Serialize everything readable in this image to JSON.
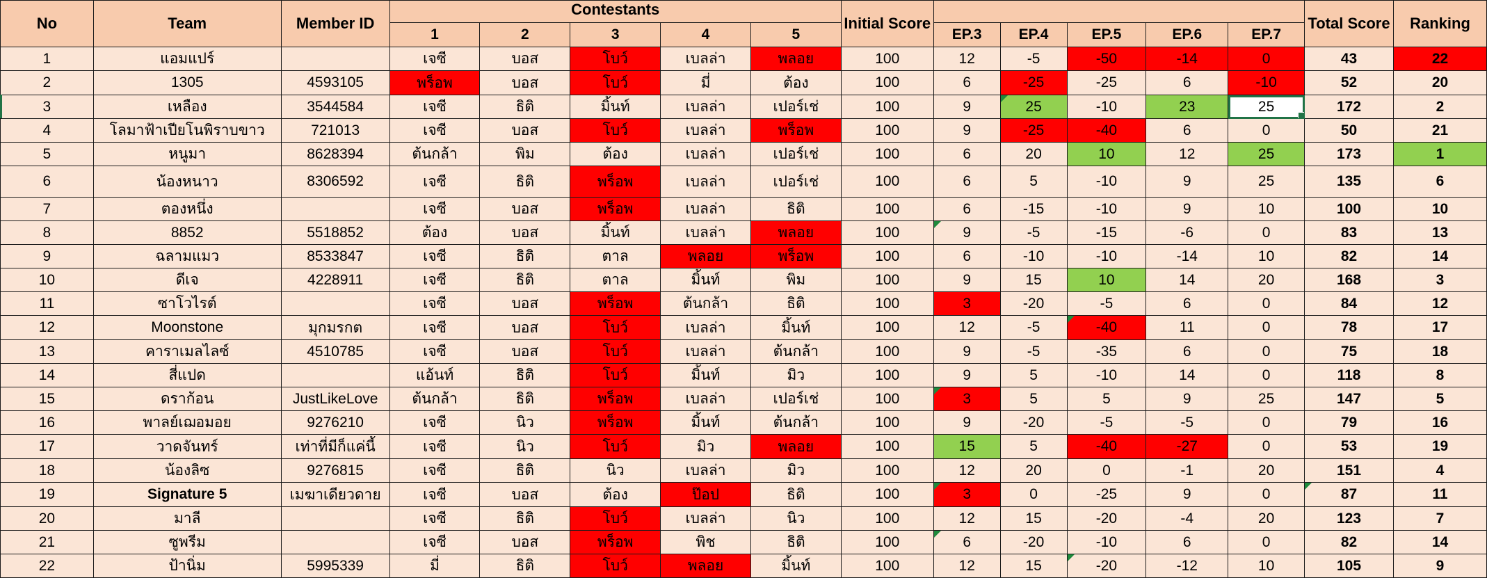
{
  "headers": {
    "no": "No",
    "team": "Team",
    "member_id": "Member ID",
    "contestants": "Contestants",
    "contestant_cols": [
      "1",
      "2",
      "3",
      "4",
      "5"
    ],
    "initial_score": "Initial Score",
    "episodes": [
      "EP.3",
      "EP.4",
      "EP.5",
      "EP.6",
      "EP.7"
    ],
    "total_score": "Total Score",
    "ranking": "Ranking"
  },
  "colors": {
    "header_fill": "#f8cbad",
    "row_fill": "#fbe5d6",
    "highlight_red": "#ff0000",
    "highlight_green": "#92d050",
    "selection_border": "#217346"
  },
  "selected_cell": "EP.7 row 3",
  "rows": [
    {
      "no": "1",
      "team": "แอมแปร์",
      "member_id": "",
      "contestants": [
        "เจซี",
        "บอส",
        "โบว์",
        "เบลล่า",
        "พลอย"
      ],
      "initial": "100",
      "eps": [
        "12",
        "-5",
        "-50",
        "-14",
        "0"
      ],
      "total": "43",
      "rank": "22"
    },
    {
      "no": "2",
      "team": "1305",
      "member_id": "4593105",
      "contestants": [
        "พร็อพ",
        "บอส",
        "โบว์",
        "มี่",
        "ต้อง"
      ],
      "initial": "100",
      "eps": [
        "6",
        "-25",
        "-25",
        "6",
        "-10"
      ],
      "total": "52",
      "rank": "20"
    },
    {
      "no": "3",
      "team": "เหลือง",
      "member_id": "3544584",
      "contestants": [
        "เจซี",
        "ธิติ",
        "มิ้นท์",
        "เบลล่า",
        "เปอร์เช่"
      ],
      "initial": "100",
      "eps": [
        "9",
        "25",
        "-10",
        "23",
        "25"
      ],
      "total": "172",
      "rank": "2"
    },
    {
      "no": "4",
      "team": "โลมาฟ้าเปียโนพิราบขาว",
      "member_id": "721013",
      "contestants": [
        "เจซี",
        "บอส",
        "โบว์",
        "เบลล่า",
        "พร็อพ"
      ],
      "initial": "100",
      "eps": [
        "9",
        "-25",
        "-40",
        "6",
        "0"
      ],
      "total": "50",
      "rank": "21"
    },
    {
      "no": "5",
      "team": "หนูมา",
      "member_id": "8628394",
      "contestants": [
        "ต้นกล้า",
        "พิม",
        "ต้อง",
        "เบลล่า",
        "เปอร์เช่"
      ],
      "initial": "100",
      "eps": [
        "6",
        "20",
        "10",
        "12",
        "25"
      ],
      "total": "173",
      "rank": "1"
    },
    {
      "no": "6",
      "team": "น้องหนาว",
      "member_id": "8306592",
      "contestants": [
        "เจซี",
        "ธิติ",
        "พร็อพ",
        "เบลล่า",
        "เปอร์เช่"
      ],
      "initial": "100",
      "eps": [
        "6",
        "5",
        "-10",
        "9",
        "25"
      ],
      "total": "135",
      "rank": "6"
    },
    {
      "no": "7",
      "team": "ตองหนึ่ง",
      "member_id": "",
      "contestants": [
        "เจซี",
        "บอส",
        "พร็อพ",
        "เบลล่า",
        "ธิติ"
      ],
      "initial": "100",
      "eps": [
        "6",
        "-15",
        "-10",
        "9",
        "10"
      ],
      "total": "100",
      "rank": "10"
    },
    {
      "no": "8",
      "team": "8852",
      "member_id": "5518852",
      "contestants": [
        "ต้อง",
        "บอส",
        "มิ้นท์",
        "เบลล่า",
        "พลอย"
      ],
      "initial": "100",
      "eps": [
        "9",
        "-5",
        "-15",
        "-6",
        "0"
      ],
      "total": "83",
      "rank": "13"
    },
    {
      "no": "9",
      "team": "ฉลามแมว",
      "member_id": "8533847",
      "contestants": [
        "เจซี",
        "ธิติ",
        "ตาล",
        "พลอย",
        "พร็อพ"
      ],
      "initial": "100",
      "eps": [
        "6",
        "-10",
        "-10",
        "-14",
        "10"
      ],
      "total": "82",
      "rank": "14"
    },
    {
      "no": "10",
      "team": "ดีเจ",
      "member_id": "4228911",
      "contestants": [
        "เจซี",
        "ธิติ",
        "ตาล",
        "มิ้นท์",
        "พิม"
      ],
      "initial": "100",
      "eps": [
        "9",
        "15",
        "10",
        "14",
        "20"
      ],
      "total": "168",
      "rank": "3"
    },
    {
      "no": "11",
      "team": "ซาโวไรต์",
      "member_id": "",
      "contestants": [
        "เจซี",
        "บอส",
        "พร็อพ",
        "ต้นกล้า",
        "ธิติ"
      ],
      "initial": "100",
      "eps": [
        "3",
        "-20",
        "-5",
        "6",
        "0"
      ],
      "total": "84",
      "rank": "12"
    },
    {
      "no": "12",
      "team": "Moonstone",
      "member_id": "มุกมรกต",
      "contestants": [
        "เจซี",
        "บอส",
        "โบว์",
        "เบลล่า",
        "มิ้นท์"
      ],
      "initial": "100",
      "eps": [
        "12",
        "-5",
        "-40",
        "11",
        "0"
      ],
      "total": "78",
      "rank": "17"
    },
    {
      "no": "13",
      "team": "คาราเมลไลซ์",
      "member_id": "4510785",
      "contestants": [
        "เจซี",
        "บอส",
        "โบว์",
        "เบลล่า",
        "ต้นกล้า"
      ],
      "initial": "100",
      "eps": [
        "9",
        "-5",
        "-35",
        "6",
        "0"
      ],
      "total": "75",
      "rank": "18"
    },
    {
      "no": "14",
      "team": "สี่แปด",
      "member_id": "",
      "contestants": [
        "แอ้นท์",
        "ธิติ",
        "โบว์",
        "มิ้นท์",
        "มิว"
      ],
      "initial": "100",
      "eps": [
        "9",
        "5",
        "-10",
        "14",
        "0"
      ],
      "total": "118",
      "rank": "8"
    },
    {
      "no": "15",
      "team": "ดราก้อน",
      "member_id": "JustLikeLove",
      "contestants": [
        "ต้นกล้า",
        "ธิติ",
        "พร็อพ",
        "เบลล่า",
        "เปอร์เช่"
      ],
      "initial": "100",
      "eps": [
        "3",
        "5",
        "5",
        "9",
        "25"
      ],
      "total": "147",
      "rank": "5"
    },
    {
      "no": "16",
      "team": "พาลย์เฌอมอย",
      "member_id": "9276210",
      "contestants": [
        "เจซี",
        "นิว",
        "พร็อพ",
        "มิ้นท์",
        "ต้นกล้า"
      ],
      "initial": "100",
      "eps": [
        "9",
        "-20",
        "-5",
        "-5",
        "0"
      ],
      "total": "79",
      "rank": "16"
    },
    {
      "no": "17",
      "team": "วาดจันทร์",
      "member_id": "เท่าที่มีก็แค่นี้",
      "contestants": [
        "เจซี",
        "นิว",
        "โบว์",
        "มิว",
        "พลอย"
      ],
      "initial": "100",
      "eps": [
        "15",
        "5",
        "-40",
        "-27",
        "0"
      ],
      "total": "53",
      "rank": "19"
    },
    {
      "no": "18",
      "team": "น้องลิซ",
      "member_id": "9276815",
      "contestants": [
        "เจซี",
        "ธิติ",
        "นิว",
        "เบลล่า",
        "มิว"
      ],
      "initial": "100",
      "eps": [
        "12",
        "20",
        "0",
        "-1",
        "20"
      ],
      "total": "151",
      "rank": "4"
    },
    {
      "no": "19",
      "team": "Signature 5",
      "member_id": "เมฆาเดียวดาย",
      "contestants": [
        "เจซี",
        "บอส",
        "ต้อง",
        "ป๊อป",
        "ธิติ"
      ],
      "initial": "100",
      "eps": [
        "3",
        "0",
        "-25",
        "9",
        "0"
      ],
      "total": "87",
      "rank": "11"
    },
    {
      "no": "20",
      "team": "มาลี",
      "member_id": "",
      "contestants": [
        "เจซี",
        "ธิติ",
        "โบว์",
        "เบลล่า",
        "นิว"
      ],
      "initial": "100",
      "eps": [
        "12",
        "15",
        "-20",
        "-4",
        "20"
      ],
      "total": "123",
      "rank": "7"
    },
    {
      "no": "21",
      "team": "ซูพรีม",
      "member_id": "",
      "contestants": [
        "เจซี",
        "บอส",
        "พร็อพ",
        "พิช",
        "ธิติ"
      ],
      "initial": "100",
      "eps": [
        "6",
        "-20",
        "-10",
        "6",
        "0"
      ],
      "total": "82",
      "rank": "14"
    },
    {
      "no": "22",
      "team": "ป้านิ่ม",
      "member_id": "5995339",
      "contestants": [
        "มี่",
        "ธิติ",
        "โบว์",
        "พลอย",
        "มิ้นท์"
      ],
      "initial": "100",
      "eps": [
        "12",
        "15",
        "-20",
        "-12",
        "10"
      ],
      "total": "105",
      "rank": "9"
    }
  ]
}
